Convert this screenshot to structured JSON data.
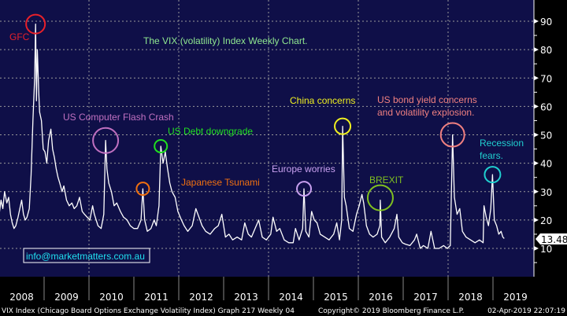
{
  "chart_data": {
    "type": "line",
    "title": "The VIX (volatility) Index Weekly Chart.",
    "xlabel": "",
    "ylabel": "",
    "xlim": [
      2008,
      2019.75
    ],
    "ylim": [
      0,
      95
    ],
    "grid": true,
    "y_ticks": [
      10,
      20,
      30,
      40,
      50,
      60,
      70,
      80,
      90
    ],
    "x_ticks": [
      "2008",
      "2009",
      "2010",
      "2011",
      "2012",
      "2013",
      "2014",
      "2015",
      "2016",
      "2017",
      "2018",
      "2019"
    ],
    "last_value": "13.48",
    "series": [
      {
        "name": "VIX Index",
        "points": [
          [
            2008.0,
            22
          ],
          [
            2008.04,
            27
          ],
          [
            2008.08,
            24
          ],
          [
            2008.12,
            30
          ],
          [
            2008.17,
            26
          ],
          [
            2008.21,
            28
          ],
          [
            2008.25,
            22
          ],
          [
            2008.29,
            19
          ],
          [
            2008.33,
            17
          ],
          [
            2008.37,
            18
          ],
          [
            2008.42,
            21
          ],
          [
            2008.46,
            24
          ],
          [
            2008.5,
            27
          ],
          [
            2008.54,
            22
          ],
          [
            2008.58,
            20
          ],
          [
            2008.62,
            21
          ],
          [
            2008.67,
            24
          ],
          [
            2008.71,
            36
          ],
          [
            2008.75,
            55
          ],
          [
            2008.79,
            70
          ],
          [
            2008.81,
            89
          ],
          [
            2008.83,
            62
          ],
          [
            2008.85,
            80
          ],
          [
            2008.88,
            65
          ],
          [
            2008.9,
            58
          ],
          [
            2008.94,
            55
          ],
          [
            2008.98,
            45
          ],
          [
            2009.02,
            44
          ],
          [
            2009.06,
            40
          ],
          [
            2009.1,
            48
          ],
          [
            2009.15,
            52
          ],
          [
            2009.19,
            45
          ],
          [
            2009.23,
            42
          ],
          [
            2009.27,
            38
          ],
          [
            2009.31,
            35
          ],
          [
            2009.35,
            33
          ],
          [
            2009.4,
            30
          ],
          [
            2009.44,
            32
          ],
          [
            2009.5,
            27
          ],
          [
            2009.56,
            25
          ],
          [
            2009.62,
            26
          ],
          [
            2009.67,
            24
          ],
          [
            2009.73,
            25
          ],
          [
            2009.79,
            28
          ],
          [
            2009.85,
            23
          ],
          [
            2009.9,
            22
          ],
          [
            2009.96,
            21
          ],
          [
            2010.02,
            20
          ],
          [
            2010.08,
            25
          ],
          [
            2010.12,
            22
          ],
          [
            2010.2,
            18
          ],
          [
            2010.27,
            17
          ],
          [
            2010.33,
            22
          ],
          [
            2010.37,
            48
          ],
          [
            2010.4,
            38
          ],
          [
            2010.44,
            33
          ],
          [
            2010.5,
            30
          ],
          [
            2010.56,
            25
          ],
          [
            2010.62,
            26
          ],
          [
            2010.7,
            23
          ],
          [
            2010.77,
            21
          ],
          [
            2010.85,
            20
          ],
          [
            2010.92,
            18
          ],
          [
            2011.0,
            17
          ],
          [
            2011.08,
            17
          ],
          [
            2011.16,
            20
          ],
          [
            2011.2,
            31
          ],
          [
            2011.24,
            20
          ],
          [
            2011.3,
            16
          ],
          [
            2011.38,
            17
          ],
          [
            2011.45,
            20
          ],
          [
            2011.5,
            18
          ],
          [
            2011.56,
            25
          ],
          [
            2011.6,
            46
          ],
          [
            2011.65,
            40
          ],
          [
            2011.7,
            44
          ],
          [
            2011.75,
            38
          ],
          [
            2011.8,
            33
          ],
          [
            2011.85,
            30
          ],
          [
            2011.92,
            28
          ],
          [
            2011.98,
            23
          ],
          [
            2012.06,
            20
          ],
          [
            2012.12,
            18
          ],
          [
            2012.2,
            16
          ],
          [
            2012.3,
            18
          ],
          [
            2012.38,
            24
          ],
          [
            2012.45,
            21
          ],
          [
            2012.52,
            18
          ],
          [
            2012.6,
            16
          ],
          [
            2012.7,
            15
          ],
          [
            2012.8,
            17
          ],
          [
            2012.88,
            18
          ],
          [
            2012.96,
            22
          ],
          [
            2013.04,
            14
          ],
          [
            2013.12,
            15
          ],
          [
            2013.2,
            13
          ],
          [
            2013.3,
            14
          ],
          [
            2013.4,
            13
          ],
          [
            2013.47,
            19
          ],
          [
            2013.55,
            15
          ],
          [
            2013.62,
            14
          ],
          [
            2013.7,
            17
          ],
          [
            2013.78,
            20
          ],
          [
            2013.86,
            14
          ],
          [
            2013.95,
            13
          ],
          [
            2014.05,
            15
          ],
          [
            2014.1,
            21
          ],
          [
            2014.18,
            16
          ],
          [
            2014.25,
            17
          ],
          [
            2014.35,
            13
          ],
          [
            2014.45,
            12
          ],
          [
            2014.55,
            12
          ],
          [
            2014.6,
            17
          ],
          [
            2014.68,
            13
          ],
          [
            2014.76,
            17
          ],
          [
            2014.79,
            31
          ],
          [
            2014.83,
            16
          ],
          [
            2014.9,
            14
          ],
          [
            2014.96,
            23
          ],
          [
            2015.02,
            20
          ],
          [
            2015.08,
            19
          ],
          [
            2015.15,
            15
          ],
          [
            2015.25,
            14
          ],
          [
            2015.35,
            13
          ],
          [
            2015.45,
            15
          ],
          [
            2015.52,
            19
          ],
          [
            2015.58,
            13
          ],
          [
            2015.63,
            20
          ],
          [
            2015.65,
            53
          ],
          [
            2015.69,
            28
          ],
          [
            2015.73,
            25
          ],
          [
            2015.8,
            17
          ],
          [
            2015.88,
            16
          ],
          [
            2015.96,
            22
          ],
          [
            2016.02,
            25
          ],
          [
            2016.08,
            29
          ],
          [
            2016.12,
            26
          ],
          [
            2016.18,
            18
          ],
          [
            2016.25,
            15
          ],
          [
            2016.33,
            14
          ],
          [
            2016.42,
            15
          ],
          [
            2016.48,
            18
          ],
          [
            2016.49,
            27
          ],
          [
            2016.52,
            14
          ],
          [
            2016.6,
            12
          ],
          [
            2016.7,
            14
          ],
          [
            2016.8,
            17
          ],
          [
            2016.86,
            22
          ],
          [
            2016.9,
            14
          ],
          [
            2016.98,
            12
          ],
          [
            2017.05,
            11.5
          ],
          [
            2017.15,
            11
          ],
          [
            2017.25,
            13
          ],
          [
            2017.3,
            15
          ],
          [
            2017.38,
            10
          ],
          [
            2017.45,
            11
          ],
          [
            2017.55,
            10
          ],
          [
            2017.62,
            16
          ],
          [
            2017.7,
            10
          ],
          [
            2017.8,
            10
          ],
          [
            2017.9,
            11
          ],
          [
            2017.98,
            10
          ],
          [
            2018.05,
            11
          ],
          [
            2018.1,
            50
          ],
          [
            2018.14,
            28
          ],
          [
            2018.2,
            22
          ],
          [
            2018.26,
            24
          ],
          [
            2018.32,
            16
          ],
          [
            2018.4,
            14
          ],
          [
            2018.5,
            13
          ],
          [
            2018.6,
            12
          ],
          [
            2018.7,
            13
          ],
          [
            2018.78,
            12
          ],
          [
            2018.8,
            25
          ],
          [
            2018.85,
            21
          ],
          [
            2018.9,
            18
          ],
          [
            2018.95,
            24
          ],
          [
            2018.99,
            36
          ],
          [
            2019.03,
            20
          ],
          [
            2019.08,
            18
          ],
          [
            2019.13,
            15
          ],
          [
            2019.18,
            16
          ],
          [
            2019.22,
            14
          ],
          [
            2019.25,
            13.48
          ]
        ]
      }
    ],
    "annotations": [
      {
        "id": "gfc",
        "text": "GFC",
        "color": "#e8202a",
        "x": 2008.81,
        "y": 89
      },
      {
        "id": "flash",
        "text": "US Computer Flash Crash",
        "color": "#c070c0",
        "x": 2010.37,
        "y": 48
      },
      {
        "id": "debt",
        "text": "US Debt downgrade",
        "color": "#20e020",
        "x": 2011.6,
        "y": 46
      },
      {
        "id": "japan",
        "text": "Japanese Tsunami",
        "color": "#f07010",
        "x": 2011.2,
        "y": 31
      },
      {
        "id": "europe",
        "text": "Europe worries",
        "color": "#c8a0f0",
        "x": 2014.79,
        "y": 31
      },
      {
        "id": "china",
        "text": "China concerns",
        "color": "#f0f020",
        "x": 2015.65,
        "y": 53
      },
      {
        "id": "brexit",
        "text": "BREXIT",
        "color": "#80c020",
        "x": 2016.49,
        "y": 27
      },
      {
        "id": "bond",
        "text": "US bond yield concerns",
        "text2": "and volatility explosion.",
        "color": "#f08080",
        "x": 2018.1,
        "y": 50
      },
      {
        "id": "recession",
        "text": "Recession",
        "text2": "fears.",
        "color": "#20d0d0",
        "x": 2018.99,
        "y": 36
      }
    ]
  },
  "watermark": "info@marketmatters.com.au",
  "footer": {
    "left": "VIX Index (Chicago Board Options Exchange Volatility Index) Graph 217  Weekly 04",
    "center": "Copyright© 2019 Bloomberg Finance L.P.",
    "right": "02-Apr-2019 22:07:19"
  },
  "colors": {
    "background": "#0f0f48",
    "line": "#ffffff",
    "grid": "#9a9a9a"
  }
}
